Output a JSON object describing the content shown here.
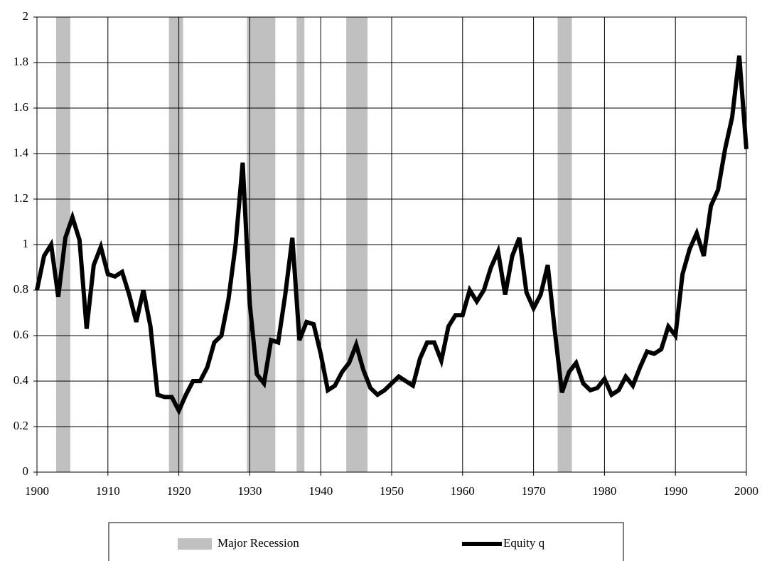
{
  "chart_data": {
    "type": "line",
    "x": [
      1900,
      1901,
      1902,
      1903,
      1904,
      1905,
      1906,
      1907,
      1908,
      1909,
      1910,
      1911,
      1912,
      1913,
      1914,
      1915,
      1916,
      1917,
      1918,
      1919,
      1920,
      1921,
      1922,
      1923,
      1924,
      1925,
      1926,
      1927,
      1928,
      1929,
      1930,
      1931,
      1932,
      1933,
      1934,
      1935,
      1936,
      1937,
      1938,
      1939,
      1940,
      1941,
      1942,
      1943,
      1944,
      1945,
      1946,
      1947,
      1948,
      1949,
      1950,
      1951,
      1952,
      1953,
      1954,
      1955,
      1956,
      1957,
      1958,
      1959,
      1960,
      1961,
      1962,
      1963,
      1964,
      1965,
      1966,
      1967,
      1968,
      1969,
      1970,
      1971,
      1972,
      1973,
      1974,
      1975,
      1976,
      1977,
      1978,
      1979,
      1980,
      1981,
      1982,
      1983,
      1984,
      1985,
      1986,
      1987,
      1988,
      1989,
      1990,
      1991,
      1992,
      1993,
      1994,
      1995,
      1996,
      1997,
      1998,
      1999,
      2000
    ],
    "series": [
      {
        "name": "Major Recession",
        "color": "#c0c0c0",
        "spans": [
          [
            1902.7,
            1904.7
          ],
          [
            1918.6,
            1920.6
          ],
          [
            1929.6,
            1933.6
          ],
          [
            1936.6,
            1937.7
          ],
          [
            1943.6,
            1946.6
          ],
          [
            1973.4,
            1975.4
          ]
        ]
      },
      {
        "name": "Equity q",
        "color": "#000000",
        "values": [
          0.8,
          0.95,
          1.0,
          0.77,
          1.03,
          1.12,
          1.02,
          0.63,
          0.91,
          0.99,
          0.87,
          0.86,
          0.88,
          0.78,
          0.66,
          0.8,
          0.64,
          0.34,
          0.33,
          0.33,
          0.27,
          0.34,
          0.4,
          0.4,
          0.46,
          0.57,
          0.6,
          0.76,
          1.0,
          1.36,
          0.74,
          0.43,
          0.39,
          0.58,
          0.57,
          0.78,
          1.03,
          0.58,
          0.66,
          0.65,
          0.52,
          0.36,
          0.38,
          0.44,
          0.48,
          0.56,
          0.45,
          0.37,
          0.34,
          0.36,
          0.39,
          0.42,
          0.4,
          0.38,
          0.5,
          0.57,
          0.57,
          0.49,
          0.64,
          0.69,
          0.69,
          0.8,
          0.75,
          0.8,
          0.9,
          0.97,
          0.78,
          0.95,
          1.03,
          0.79,
          0.72,
          0.78,
          0.91,
          0.62,
          0.35,
          0.44,
          0.48,
          0.39,
          0.36,
          0.37,
          0.41,
          0.34,
          0.36,
          0.42,
          0.38,
          0.46,
          0.53,
          0.52,
          0.54,
          0.64,
          0.6,
          0.87,
          0.98,
          1.05,
          0.95,
          1.17,
          1.24,
          1.42,
          1.56,
          1.83,
          1.42
        ]
      }
    ],
    "xlim": [
      1900,
      2000
    ],
    "xticks": [
      1900,
      1910,
      1920,
      1930,
      1940,
      1950,
      1960,
      1970,
      1980,
      1990,
      2000
    ],
    "ylim": [
      0,
      2
    ],
    "yticks": [
      0,
      0.2,
      0.4,
      0.6,
      0.8,
      1,
      1.2,
      1.4,
      1.6,
      1.8,
      2
    ],
    "grid": true,
    "legend": "bottom"
  }
}
